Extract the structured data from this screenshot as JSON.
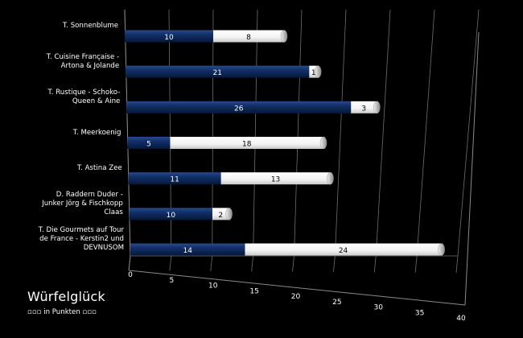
{
  "chart_data": {
    "type": "bar",
    "orientation": "horizontal",
    "stacked": true,
    "title": "Würfelglück",
    "subtitle": "▫▫▫ in Punkten ▫▫▫",
    "xlabel": "",
    "ylabel": "",
    "xlim": [
      0,
      40
    ],
    "x_ticks": [
      0,
      5,
      10,
      15,
      20,
      25,
      30,
      35,
      40
    ],
    "grid": true,
    "legend": "none",
    "categories": [
      "T. Sonnenblume",
      "T. Cuisine Française -\nArtona & Jolande",
      "T. Rustique - Schoko-\nQueen & Aine",
      "T. Meerkoenig",
      "T. Astina Zee",
      "D. Raddern Duder -\nJunker Jörg & Fischkopp\nClaas",
      "T. Die Gourmets auf Tour\nde France - Kerstin2 und\nDEVNUSOM"
    ],
    "series": [
      {
        "color": "#0d2a5e",
        "label_color": "#ffffff",
        "values": [
          10,
          21,
          26,
          5,
          11,
          10,
          14
        ]
      },
      {
        "color": "#ffffff",
        "label_color": "#000000",
        "values": [
          8,
          1,
          3,
          18,
          13,
          2,
          24
        ]
      }
    ]
  }
}
